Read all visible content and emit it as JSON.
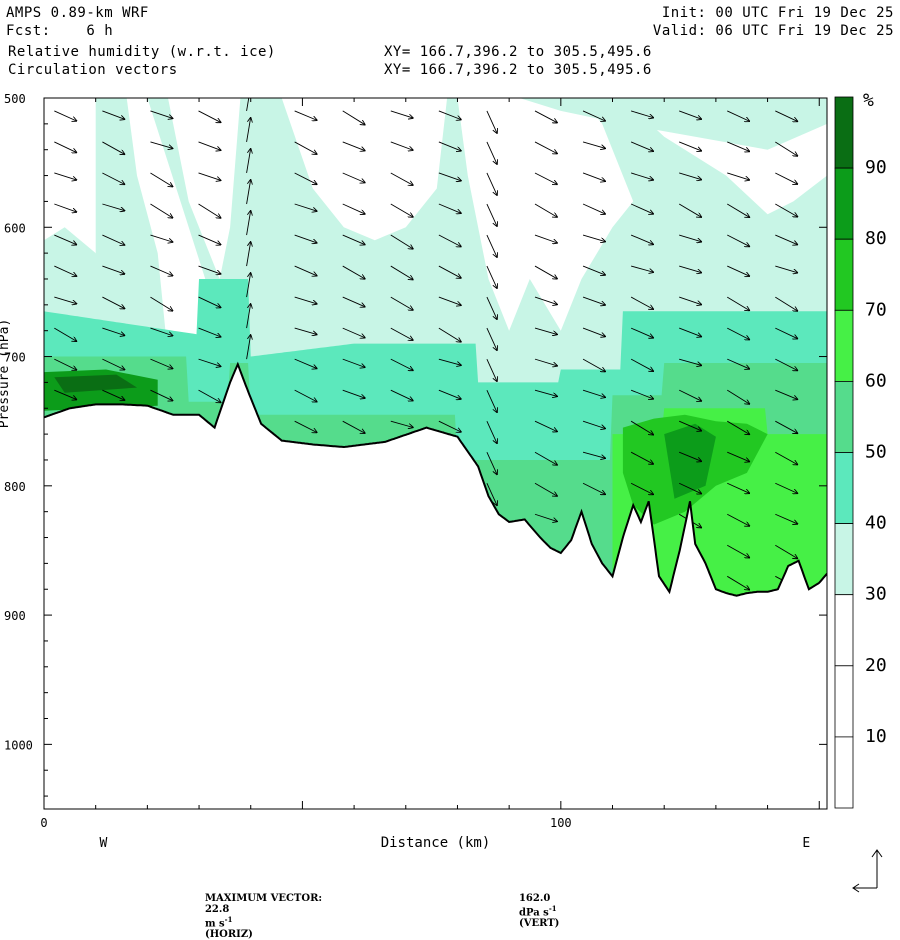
{
  "header": {
    "model": "AMPS 0.89-km WRF",
    "forecast": "Fcst:    6 h",
    "field1": "Relative humidity (w.r.t. ice)",
    "field2": "Circulation vectors",
    "xy1": "XY= 166.7,396.2 to 305.5,495.6",
    "xy2": "XY= 166.7,396.2 to 305.5,495.6",
    "init": "Init: 00 UTC Fri 19 Dec 25",
    "valid": "Valid: 06 UTC Fri 19 Dec 25"
  },
  "chart_data": {
    "type": "heatmap",
    "xlabel": "Distance (km)",
    "ylabel": "Pressure (hPa)",
    "xlim": [
      0,
      151.5
    ],
    "ylim": [
      1050,
      500
    ],
    "x_ticks": [
      0,
      100
    ],
    "x_tick_labels": [
      "0",
      "100"
    ],
    "y_ticks": [
      500,
      600,
      700,
      800,
      900,
      1000
    ],
    "y_tick_labels": [
      "500",
      "600",
      "700",
      "800",
      "900",
      "1000"
    ],
    "direction_labels": [
      {
        "text": "W",
        "x": 11.5
      },
      {
        "text": "E",
        "x": 147.5
      }
    ],
    "colorbar": {
      "unit": "%",
      "levels": [
        10,
        20,
        30,
        40,
        50,
        60,
        70,
        80,
        90
      ],
      "labels": [
        "10",
        "20",
        "30",
        "40",
        "50",
        "60",
        "70",
        "80",
        "90"
      ],
      "colors": [
        "#ffffff",
        "#ffffff",
        "#ffffff",
        "#c8f5e6",
        "#5ce8bc",
        "#55dc8c",
        "#46f046",
        "#22c822",
        "#0c9c1a",
        "#0a6e14"
      ]
    },
    "terrain_km": [
      0,
      5,
      10,
      15,
      20,
      25,
      30,
      33,
      36,
      37.5,
      39,
      42,
      46,
      52,
      58,
      66,
      74,
      80,
      84,
      86,
      88,
      90,
      93,
      96,
      98,
      100,
      102,
      104,
      106,
      108,
      110,
      112,
      114,
      115.5,
      117,
      119,
      121,
      123,
      125,
      126,
      128,
      130,
      132,
      134,
      136,
      138,
      140,
      142,
      144,
      146,
      148,
      150,
      151.5
    ],
    "terrain_hpa": [
      747,
      740,
      737,
      737,
      738,
      745,
      745,
      755,
      720,
      706,
      722,
      752,
      765,
      768,
      770,
      766,
      755,
      762,
      785,
      808,
      822,
      828,
      826,
      840,
      848,
      852,
      842,
      820,
      845,
      860,
      870,
      840,
      815,
      828,
      812,
      870,
      882,
      850,
      812,
      845,
      860,
      880,
      883,
      885,
      883,
      882,
      882,
      880,
      862,
      858,
      880,
      875,
      868
    ],
    "rh_layers": [
      {
        "level": 40,
        "note": "near-surface band"
      },
      {
        "level": 60,
        "note": "west slope and eastern lowlands"
      },
      {
        "level": 80,
        "note": "eastern lowlands"
      }
    ],
    "vectors_note": "circulation vectors mostly westerly (left-to-right), strong descent near 84-88 km",
    "max_vector_horiz": "22.8 m s-1 (HORIZ)",
    "max_vector_vert": "162.0 dPa s-1 (VERT)"
  },
  "footer": {
    "label": "MAXIMUM VECTOR:",
    "horiz_value": "22.8",
    "horiz_unit": "m s",
    "horiz_exp": "-1",
    "horiz_tag": "(HORIZ)",
    "vert_value": "162.0",
    "vert_unit": "dPa s",
    "vert_exp": "-1",
    "vert_tag": "(VERT)"
  }
}
